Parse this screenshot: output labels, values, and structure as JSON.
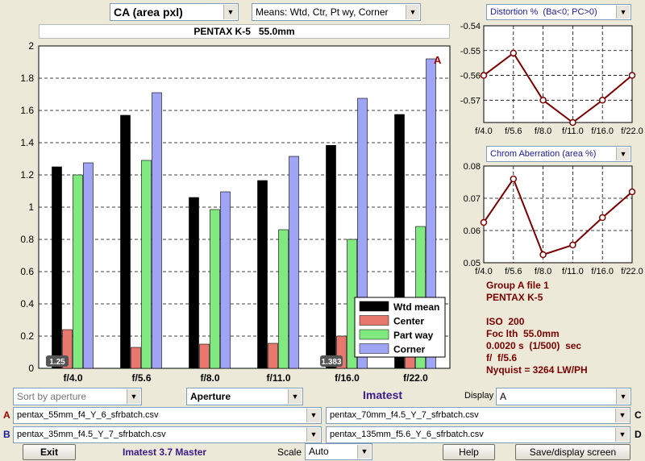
{
  "top": {
    "metric": "CA (area pxl)",
    "means": "Means: Wtd, Ctr, Pt wy, Corner",
    "camera_title": "PENTAX K-5   55.0mm"
  },
  "colors": {
    "wtd": "#000000",
    "center": "#e8786e",
    "partway": "#80ea80",
    "corner": "#a0a4f4",
    "side_line": "#7a0000",
    "info_text": "#7a0000",
    "link_blue": "#1a1a9a"
  },
  "chart_data": [
    {
      "type": "bar",
      "marker": "A",
      "categories": [
        "f/4.0",
        "f/5.6",
        "f/8.0",
        "f/11.0",
        "f/16.0",
        "f/22.0"
      ],
      "series": [
        {
          "name": "Wtd mean",
          "values": [
            1.25,
            1.57,
            1.06,
            1.165,
            1.383,
            1.575
          ]
        },
        {
          "name": "Center",
          "values": [
            0.24,
            0.13,
            0.15,
            0.155,
            0.2,
            0.18
          ]
        },
        {
          "name": "Part way",
          "values": [
            1.2,
            1.29,
            0.985,
            0.86,
            0.8,
            0.88
          ]
        },
        {
          "name": "Corner",
          "values": [
            1.275,
            1.71,
            1.095,
            1.315,
            1.675,
            1.92
          ]
        }
      ],
      "y_ticks": [
        "0",
        "0.2",
        "0.4",
        "0.6",
        "0.8",
        "1",
        "1.2",
        "1.4",
        "1.6",
        "1.8",
        "2"
      ],
      "ylim": [
        0,
        2
      ],
      "grid": true,
      "legend_position": "bottom-right",
      "bar_labels": [
        {
          "index": 0,
          "text": "1.25"
        },
        {
          "index": 4,
          "text": "1.383"
        }
      ]
    },
    {
      "type": "line",
      "title": "Distortion %  (Ba<0; PC>0)",
      "categories": [
        "f/4.0",
        "f/5.6",
        "f/8.0",
        "f/11.0",
        "f/16.0",
        "f/22.0"
      ],
      "values": [
        -0.56,
        -0.551,
        -0.57,
        -0.579,
        -0.57,
        -0.56
      ],
      "y_ticks": [
        "-0.54",
        "-0.55",
        "-0.56",
        "-0.57"
      ],
      "ylim": [
        -0.579,
        -0.54
      ],
      "grid": true
    },
    {
      "type": "line",
      "title": "Chrom Aberration (area %)",
      "categories": [
        "f/4.0",
        "f/5.6",
        "f/8.0",
        "f/11.0",
        "f/16.0",
        "f/22.0"
      ],
      "values": [
        0.0625,
        0.076,
        0.0525,
        0.0555,
        0.064,
        0.072
      ],
      "y_ticks": [
        "0.08",
        "0.07",
        "0.06",
        "0.05"
      ],
      "ylim": [
        0.05,
        0.08
      ],
      "grid": true
    }
  ],
  "info": {
    "group": "Group A file 1",
    "camera": "PENTAX K-5",
    "iso": "ISO  200",
    "focal": "Foc lth  55.0mm",
    "shutter": "0.0020 s  (1/500)  sec",
    "aperture": "f/  f/5.6",
    "nyquist": "Nyquist = 3264 LW/PH"
  },
  "controls": {
    "sort": "Sort by aperture",
    "xaxis": "Aperture",
    "brand": "Imatest",
    "display_label": "Display",
    "display_value": "A",
    "a_label": "A",
    "b_label": "B",
    "c_label": "C",
    "d_label": "D",
    "file_a": "pentax_55mm_f4_Y_6_sfrbatch.csv",
    "file_b": "pentax_35mm_f4.5_Y_7_sfrbatch.csv",
    "file_c": "pentax_70mm_f4.5_Y_7_sfrbatch.csv",
    "file_d": "pentax_135mm_f5.6_Y_6_sfrbatch.csv",
    "exit": "Exit",
    "version": "Imatest 3.7 Master",
    "scale_label": "Scale",
    "scale_value": "Auto",
    "help": "Help",
    "save": "Save/display screen"
  }
}
